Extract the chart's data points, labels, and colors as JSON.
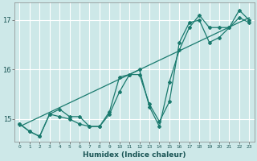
{
  "xlabel": "Humidex (Indice chaleur)",
  "background_color": "#cde8e8",
  "grid_color": "#ffffff",
  "line_color": "#1a7a6e",
  "xlim": [
    -0.5,
    23.5
  ],
  "ylim": [
    14.55,
    17.35
  ],
  "yticks": [
    15,
    16,
    17
  ],
  "xticks": [
    0,
    1,
    2,
    3,
    4,
    5,
    6,
    7,
    8,
    9,
    10,
    11,
    12,
    13,
    14,
    15,
    16,
    17,
    18,
    19,
    20,
    21,
    22,
    23
  ],
  "series1_x": [
    0,
    1,
    2,
    3,
    4,
    5,
    6,
    7,
    8,
    9,
    10,
    11,
    12,
    13,
    14,
    15,
    16,
    17,
    18,
    19,
    20,
    21,
    22,
    23
  ],
  "series1_y": [
    14.9,
    14.75,
    14.65,
    15.1,
    15.2,
    15.05,
    15.05,
    14.85,
    14.85,
    15.15,
    15.85,
    15.9,
    16.0,
    15.25,
    14.85,
    15.75,
    16.4,
    16.85,
    17.1,
    16.85,
    16.85,
    16.85,
    17.2,
    17.0
  ],
  "series2_x": [
    0,
    1,
    2,
    3,
    4,
    5,
    6,
    7,
    8,
    9,
    10,
    11,
    12,
    13,
    14,
    15,
    16,
    17,
    18,
    19,
    20,
    21,
    22,
    23
  ],
  "series2_y": [
    14.9,
    14.75,
    14.65,
    15.1,
    15.05,
    15.0,
    14.9,
    14.85,
    14.85,
    15.1,
    15.55,
    15.9,
    15.9,
    15.3,
    14.95,
    15.35,
    16.55,
    16.95,
    17.0,
    16.55,
    16.65,
    16.85,
    17.05,
    16.95
  ],
  "trend_x": [
    0,
    23
  ],
  "trend_y": [
    14.85,
    17.05
  ]
}
